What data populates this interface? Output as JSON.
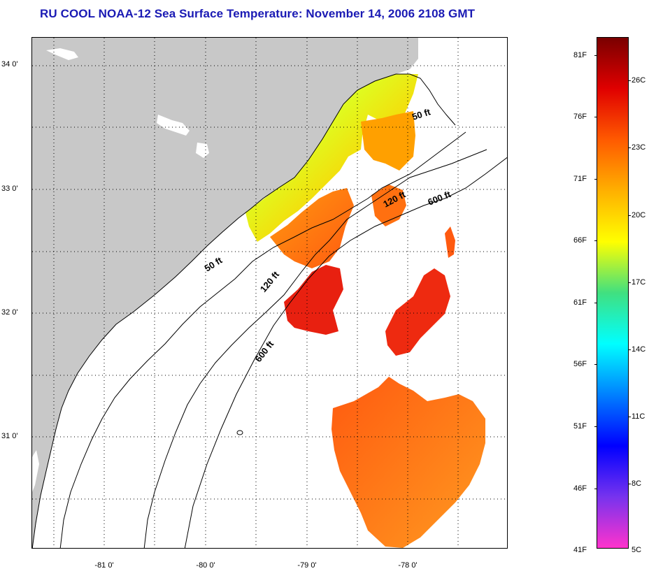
{
  "title": "RU COOL  NOAA-12  Sea Surface Temperature:  November 14, 2006 2108 GMT",
  "axes": {
    "lat_labels": [
      "34 0'",
      "33 0'",
      "32 0'",
      "31 0'"
    ],
    "lon_labels": [
      "-81 0'",
      "-80 0'",
      "-79 0'",
      "-78 0'"
    ]
  },
  "contours": {
    "label_50_a": "50 ft",
    "label_50_b": "50 ft",
    "label_120_a": "120 ft",
    "label_120_b": "120 ft",
    "label_600_a": "600 ft",
    "label_600_b": "600 ft"
  },
  "colorbar": {
    "fahrenheit": [
      "81F",
      "76F",
      "71F",
      "66F",
      "61F",
      "56F",
      "51F",
      "46F",
      "41F"
    ],
    "celsius": [
      "26C",
      "23C",
      "20C",
      "17C",
      "14C",
      "11C",
      "8C",
      "5C"
    ],
    "colors": [
      "#7a0000",
      "#e00000",
      "#ff5a00",
      "#ffb000",
      "#ffff00",
      "#40e080",
      "#00ffff",
      "#0080ff",
      "#0000ff",
      "#7733ee",
      "#ff33cc"
    ]
  },
  "map_colors": {
    "land": "#c8c8c8",
    "sst_cool": "#aaee55",
    "sst_mid": "#ffc400",
    "sst_warm": "#ff7a10",
    "sst_hot": "#e81a0a"
  }
}
